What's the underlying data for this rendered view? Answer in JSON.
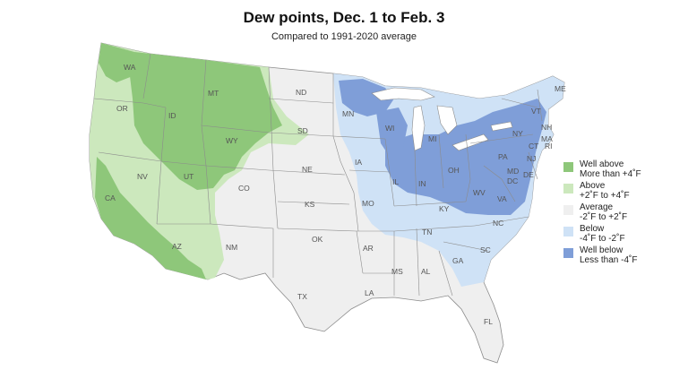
{
  "title": "Dew points, Dec. 1 to Feb. 3",
  "subtitle": "Compared to 1991-2020 average",
  "colors": {
    "well_above": "#8ec77a",
    "above": "#cce8bd",
    "average": "#efefef",
    "below": "#cfe2f6",
    "well_below": "#7f9ed8",
    "border": "#8c8c8c",
    "lake": "#ffffff"
  },
  "legend": [
    {
      "line1": "Well above",
      "line2": "More than +4˚F",
      "color": "#8ec77a"
    },
    {
      "line1": "Above",
      "line2": "+2˚F to +4˚F",
      "color": "#cce8bd"
    },
    {
      "line1": "Average",
      "line2": "-2˚F to +2˚F",
      "color": "#efefef"
    },
    {
      "line1": "Below",
      "line2": "-4˚F to -2˚F",
      "color": "#cfe2f6"
    },
    {
      "line1": "Well below",
      "line2": "Less than -4˚F",
      "color": "#7f9ed8"
    }
  ],
  "states": [
    "WA",
    "OR",
    "CA",
    "ID",
    "NV",
    "MT",
    "WY",
    "UT",
    "AZ",
    "CO",
    "NM",
    "ND",
    "SD",
    "NE",
    "KS",
    "OK",
    "TX",
    "MN",
    "IA",
    "MO",
    "AR",
    "LA",
    "WI",
    "IL",
    "MI",
    "IN",
    "OH",
    "KY",
    "TN",
    "MS",
    "AL",
    "GA",
    "FL",
    "SC",
    "NC",
    "VA",
    "WV",
    "PA",
    "NY",
    "ME",
    "VT",
    "NH",
    "MA",
    "CT",
    "RI",
    "NJ",
    "DE",
    "MD",
    "DC"
  ]
}
